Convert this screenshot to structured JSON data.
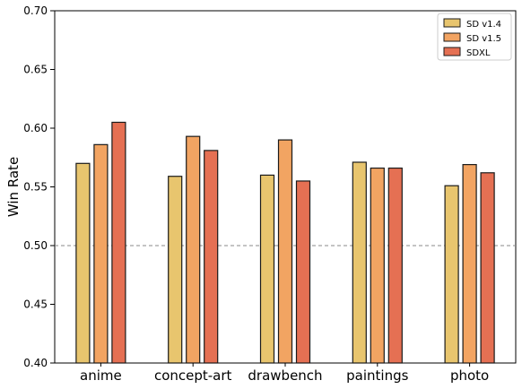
{
  "chart_data": {
    "type": "bar",
    "title": "",
    "xlabel": "",
    "ylabel": "Win Rate",
    "ylim": [
      0.4,
      0.7
    ],
    "yticks": [
      "0.40",
      "0.45",
      "0.50",
      "0.55",
      "0.60",
      "0.65",
      "0.70"
    ],
    "categories": [
      "anime",
      "concept-art",
      "drawbench",
      "paintings",
      "photo"
    ],
    "series": [
      {
        "name": "SD v1.4",
        "color": "#e8c56e",
        "values": [
          0.57,
          0.559,
          0.56,
          0.571,
          0.551
        ]
      },
      {
        "name": "SD v1.5",
        "color": "#f2a462",
        "values": [
          0.586,
          0.593,
          0.59,
          0.566,
          0.569
        ]
      },
      {
        "name": "SDXL",
        "color": "#e57053",
        "values": [
          0.605,
          0.581,
          0.555,
          0.566,
          0.562
        ]
      }
    ],
    "reference_line": {
      "value": 0.5,
      "style": "dashed",
      "color": "#888888"
    },
    "legend_position": "top-right",
    "grid": false
  }
}
